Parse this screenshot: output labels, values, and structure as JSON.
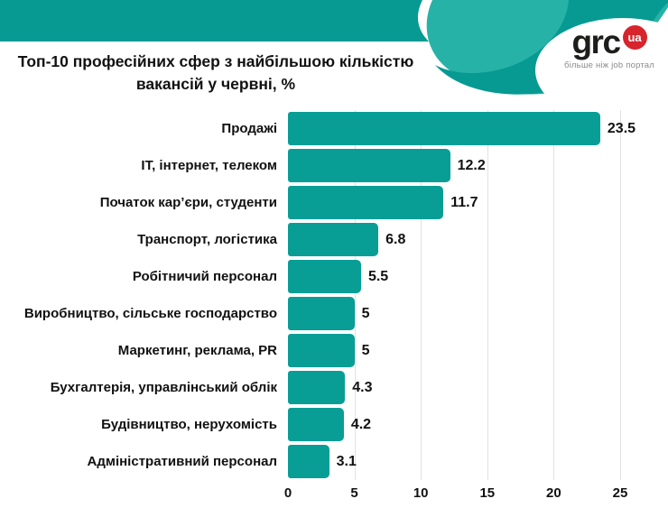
{
  "header": {
    "title_line1": "Топ-10 професійних сфер з найбільшою кількістю",
    "title_line2": "вакансій у червні, %",
    "logo": {
      "name": "grc",
      "badge": "ua",
      "tagline": "більше ніж job портал"
    }
  },
  "colors": {
    "teal_band": "#069a92",
    "teal_wave_light": "#27b2a7",
    "teal_wave_dark": "#069a92",
    "bar": "#089e96",
    "logo_red": "#d6252c",
    "gridline": "#e2e2e2"
  },
  "chart_data": {
    "type": "bar",
    "orientation": "horizontal",
    "title": "Топ-10 професійних сфер з найбільшою кількістю вакансій у червні, %",
    "categories": [
      "Продажі",
      "IT, інтернет, телеком",
      "Початок кар’єри, студенти",
      "Транспорт, логістика",
      "Робітничий персонал",
      "Виробництво, сільське господарство",
      "Маркетинг, реклама, PR",
      "Бухгалтерія, управлінський облік",
      "Будівництво, нерухомість",
      "Адміністративний персонал"
    ],
    "values": [
      23.5,
      12.2,
      11.7,
      6.8,
      5.5,
      5,
      5,
      4.3,
      4.2,
      3.1
    ],
    "x_ticks": [
      0,
      5,
      10,
      15,
      20,
      25
    ],
    "xlim": [
      0,
      28.5
    ],
    "unit": "%",
    "grid": true,
    "value_labels": true,
    "legend": false,
    "bar_color": "#089e96"
  }
}
